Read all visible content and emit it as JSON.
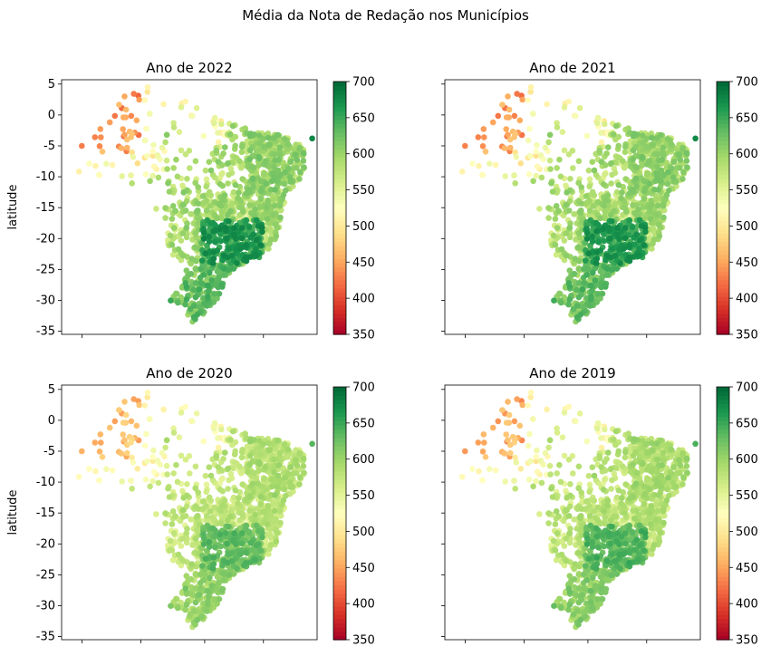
{
  "suptitle": "Média da Nota de Redação nos Municípios",
  "chart_data": [
    {
      "type": "scatter",
      "title": "Ano de 2022",
      "xlabel": "",
      "ylabel": "latitude",
      "ylim": [
        -35.5,
        5.7
      ],
      "yticks": [
        5,
        0,
        -5,
        -10,
        -15,
        -20,
        -25,
        -30,
        -35
      ],
      "x_tick_labels_shown": false,
      "grid": false,
      "colorbar": {
        "label": "",
        "range": [
          350,
          700
        ],
        "ticks": [
          350,
          400,
          450,
          500,
          550,
          600,
          650,
          700
        ],
        "cmap": "RdYlGn"
      },
      "level": 1.0,
      "points": []
    },
    {
      "type": "scatter",
      "title": "Ano de 2021",
      "xlabel": "",
      "ylabel": "",
      "ylim": [
        -35.5,
        5.7
      ],
      "yticks": [
        5,
        0,
        -5,
        -10,
        -15,
        -20,
        -25,
        -30,
        -35
      ],
      "y_tick_labels_shown": false,
      "x_tick_labels_shown": false,
      "grid": false,
      "colorbar": {
        "label": "",
        "range": [
          350,
          700
        ],
        "ticks": [
          350,
          400,
          450,
          500,
          550,
          600,
          650,
          700
        ],
        "cmap": "RdYlGn"
      },
      "level": 0.98,
      "points": []
    },
    {
      "type": "scatter",
      "title": "Ano de 2020",
      "xlabel": "",
      "ylabel": "latitude",
      "ylim": [
        -35.5,
        5.7
      ],
      "yticks": [
        5,
        0,
        -5,
        -10,
        -15,
        -20,
        -25,
        -30,
        -35
      ],
      "x_tick_labels_shown": false,
      "grid": false,
      "colorbar": {
        "label": "",
        "range": [
          350,
          700
        ],
        "ticks": [
          350,
          400,
          450,
          500,
          550,
          600,
          650,
          700
        ],
        "cmap": "RdYlGn"
      },
      "level": 0.74,
      "points": []
    },
    {
      "type": "scatter",
      "title": "Ano de 2019",
      "xlabel": "",
      "ylabel": "",
      "ylim": [
        -35.5,
        5.7
      ],
      "yticks": [
        5,
        0,
        -5,
        -10,
        -15,
        -20,
        -25,
        -30,
        -35
      ],
      "y_tick_labels_shown": false,
      "x_tick_labels_shown": false,
      "grid": false,
      "colorbar": {
        "label": "",
        "range": [
          350,
          700
        ],
        "ticks": [
          350,
          400,
          450,
          500,
          550,
          600,
          650,
          700
        ],
        "cmap": "RdYlGn"
      },
      "level": 0.8,
      "points": []
    }
  ]
}
